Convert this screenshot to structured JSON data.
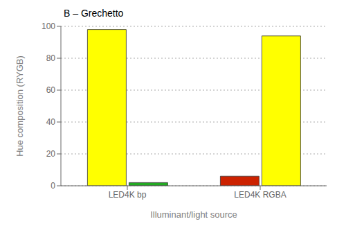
{
  "chart_data": {
    "type": "bar",
    "title": "B – Grechetto",
    "xlabel": "Illuminant/light source",
    "ylabel": "Hue composition (RYGB)",
    "categories": [
      "LED4K bp",
      "LED4K RGBA"
    ],
    "series": [
      {
        "values": [
          98,
          6
        ],
        "colors": [
          "#ffff00",
          "#cc2200"
        ]
      },
      {
        "values": [
          2,
          94
        ],
        "colors": [
          "#22aa22",
          "#ffff00"
        ]
      }
    ],
    "ylim": [
      0,
      100
    ],
    "yticks": [
      0,
      20,
      40,
      60,
      80,
      100
    ],
    "grid": true
  }
}
